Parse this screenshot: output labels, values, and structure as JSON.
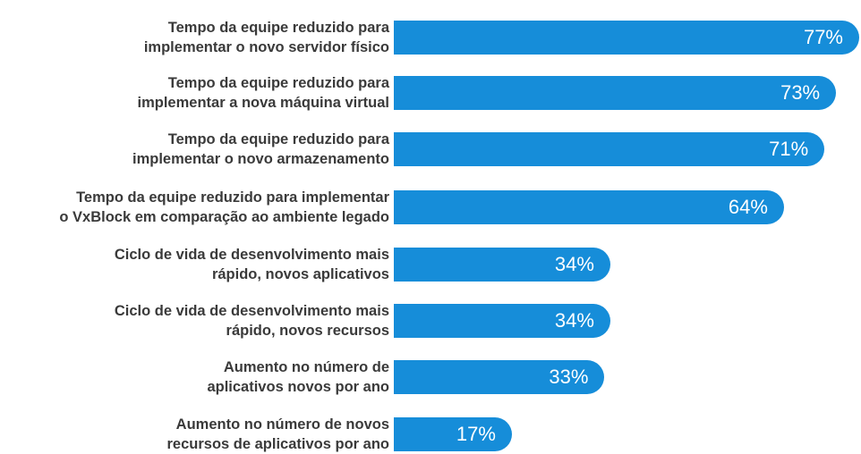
{
  "chart_data": {
    "type": "bar",
    "orientation": "horizontal",
    "color": "#168dd9",
    "categories": [
      "Tempo da equipe reduzido para\nimplementar o novo servidor físico",
      "Tempo da equipe reduzido para\nimplementar a nova máquina virtual",
      "Tempo da equipe reduzido para\nimplementar o novo armazenamento",
      "Tempo da equipe reduzido para implementar\no VxBlock em comparação ao ambiente legado",
      "Ciclo de vida de desenvolvimento mais\nrápido, novos aplicativos",
      "Ciclo de vida de desenvolvimento mais\nrápido, novos recursos",
      "Aumento no número de\naplicativos novos por ano",
      "Aumento no número de novos\nrecursos de aplicativos por ano"
    ],
    "values": [
      77,
      73,
      71,
      64,
      34,
      34,
      33,
      17
    ],
    "value_labels": [
      "77%",
      "73%",
      "71%",
      "64%",
      "34%",
      "34%",
      "33%",
      "17%"
    ]
  }
}
